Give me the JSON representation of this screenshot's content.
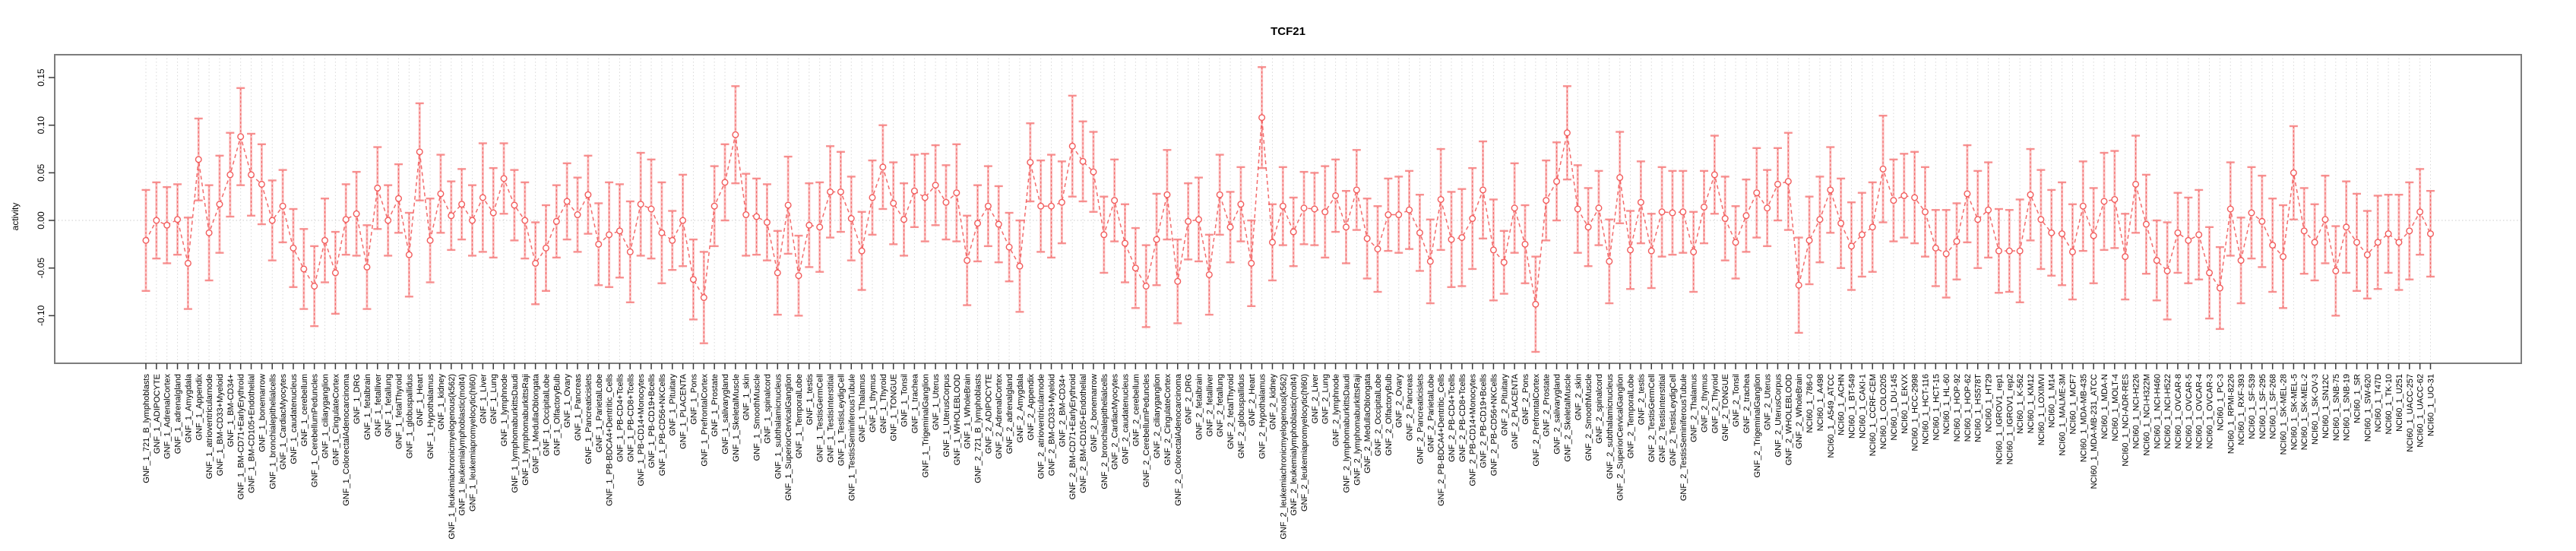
{
  "title": "TCF21",
  "ylabel": "activity",
  "colors": {
    "point": "#f25c5c",
    "line": "#f25c5c",
    "bar": "#f9a0a0",
    "cap": "#f78585",
    "grid": "#d9d9d9",
    "zero_line": "#cccccc",
    "box": "#7d7d7d",
    "tick": "#3a3a3a",
    "text": "#000000"
  },
  "chart_data": {
    "type": "scatter",
    "title": "TCF21",
    "xlabel": "",
    "ylabel": "activity",
    "ylim": [
      -0.15,
      0.174
    ],
    "grid": "dotted vertical line per category; dotted horizontal line at y=0",
    "legend": "none",
    "style": "open circles with symmetric error bars, connected by dashed line",
    "yticks": [
      {
        "label": "0.15",
        "v": 0.15
      },
      {
        "label": "0.10",
        "v": 0.1
      },
      {
        "label": "0.05",
        "v": 0.05
      },
      {
        "label": "0.00",
        "v": 0.0
      },
      {
        "label": "-0.05",
        "v": -0.05
      },
      {
        "label": "-0.10",
        "v": -0.1
      }
    ],
    "categories": [
      "GNF_1_721_B_lymphoblasts",
      "GNF_1_ADIPOCYTE",
      "GNF_1_AdrenalCortex",
      "GNF_1_adrenalgland",
      "GNF_1_Amygdala",
      "GNF_1_Appendix",
      "GNF_1_atrioventricularnode",
      "GNF_1_BM-CD33+Myeloid",
      "GNF_1_BM-CD34+",
      "GNF_1_BM-CD71+EarlyErythroid",
      "GNF_1_BM-CD105+Endothelial",
      "GNF_1_bonemarrow",
      "GNF_1_bronchialepithelialcells",
      "GNF_1_CardiacMyocytes",
      "GNF_1_caudatenucleus",
      "GNF_1_cerebellum",
      "GNF_1_CerebellumPeduncles",
      "GNF_1_ciliaryganglion",
      "GNF_1_CingulateCortex",
      "GNF_1_ColorectalAdenocarcinoma",
      "GNF_1_DRG",
      "GNF_1_fetalbrain",
      "GNF_1_fetalliver",
      "GNF_1_fetallung",
      "GNF_1_fetalThyroid",
      "GNF_1_globuspallidus",
      "GNF_1_Heart",
      "GNF_1_Hypothalamus",
      "GNF_1_kidney",
      "GNF_1_leukemiachronicmyelogenous(k562)",
      "GNF_1_leukemialymphoblastic(molt4)",
      "GNF_1_leukemiapromyelocytic(hl60)",
      "GNF_1_Liver",
      "GNF_1_Lung",
      "GNF_1_lymphnode",
      "GNF_1_lymphomaburkittsDaudi",
      "GNF_1_lymphomaburkittsRaji",
      "GNF_1_MedullaOblongata",
      "GNF_1_OccipitalLobe",
      "GNF_1_OlfactoryBulb",
      "GNF_1_Ovary",
      "GNF_1_Pancreas",
      "GNF_1_Pancreaticislets",
      "GNF_1_ParietalLobe",
      "GNF_1_PB-BDCA4+Dentritic_Cells",
      "GNF_1_PB-CD4+Tcells",
      "GNF_1_PB-CD8+Tcells",
      "GNF_1_PB-CD14+Monocytes",
      "GNF_1_PB-CD19+Bcells",
      "GNF_1_PB-CD56+NKCells",
      "GNF_1_Pituitary",
      "GNF_1_PLACENTA",
      "GNF_1_Pons",
      "GNF_1_PrefrontalCortex",
      "GNF_1_Prostate",
      "GNF_1_salivarygland",
      "GNF_1_SkeletalMuscle",
      "GNF_1_skin",
      "GNF_1_SmoothMuscle",
      "GNF_1_spinalcord",
      "GNF_1_subthalamicnucleus",
      "GNF_1_SuperiorCervicalGanglion",
      "GNF_1_TemporalLobe",
      "GNF_1_testis",
      "GNF_1_TestisGermCell",
      "GNF_1_TestisInterstitial",
      "GNF_1_TestisLeydigCell",
      "GNF_1_TestisSeminiferousTubule",
      "GNF_1_Thalamus",
      "GNF_1_thymus",
      "GNF_1_Thyroid",
      "GNF_1_TONGUE",
      "GNF_1_Tonsil",
      "GNF_1_trachea",
      "GNF_1_TrigeminalGanglion",
      "GNF_1_Uterus",
      "GNF_1_UterusCorpus",
      "GNF_1_WHOLEBLOOD",
      "GNF_1_WholeBrain",
      "GNF_2_721_B_lymphoblasts",
      "GNF_2_ADIPOCYTE",
      "GNF_2_AdrenalCortex",
      "GNF_2_adrenalgland",
      "GNF_2_Amygdala",
      "GNF_2_Appendix",
      "GNF_2_atrioventricularnode",
      "GNF_2_BM-CD33+Myeloid",
      "GNF_2_BM-CD34+",
      "GNF_2_BM-CD71+EarlyErythroid",
      "GNF_2_BM-CD105+Endothelial",
      "GNF_2_bonemarrow",
      "GNF_2_bronchialepithelialcells",
      "GNF_2_CardiacMyocytes",
      "GNF_2_caudatenucleus",
      "GNF_2_cerebellum",
      "GNF_2_CerebellumPeduncles",
      "GNF_2_ciliaryganglion",
      "GNF_2_CingulateCortex",
      "GNF_2_ColorectalAdenocarcinoma",
      "GNF_2_DRG",
      "GNF_2_fetalbrain",
      "GNF_2_fetalliver",
      "GNF_2_fetallung",
      "GNF_2_fetalThyroid",
      "GNF_2_globuspallidus",
      "GNF_2_Heart",
      "GNF_2_Hypothalamus",
      "GNF_2_kidney",
      "GNF_2_leukemiachronicmyelogenous(k562)",
      "GNF_2_leukemialymphoblastic(molt4)",
      "GNF_2_leukemiapromyelocytic(hl60)",
      "GNF_2_Liver",
      "GNF_2_Lung",
      "GNF_2_lymphnode",
      "GNF_2_lymphomaburkittsDaudi",
      "GNF_2_lymphomaburkittsRaji",
      "GNF_2_MedullaOblongata",
      "GNF_2_OccipitalLobe",
      "GNF_2_OlfactoryBulb",
      "GNF_2_Ovary",
      "GNF_2_Pancreas",
      "GNF_2_Pancreaticislets",
      "GNF_2_ParietalLobe",
      "GNF_2_PB-BDCA4+Dentritic_Cells",
      "GNF_2_PB-CD4+Tcells",
      "GNF_2_PB-CD8+Tcells",
      "GNF_2_PB-CD14+Monocytes",
      "GNF_2_PB-CD19+Bcells",
      "GNF_2_PB-CD56+NKCells",
      "GNF_2_Pituitary",
      "GNF_2_PLACENTA",
      "GNF_2_Pons",
      "GNF_2_PrefrontalCortex",
      "GNF_2_Prostate",
      "GNF_2_salivarygland",
      "GNF_2_SkeletalMuscle",
      "GNF_2_skin",
      "GNF_2_SmoothMuscle",
      "GNF_2_spinalcord",
      "GNF_2_subthalamicnucleus",
      "GNF_2_SuperiorCervicalGanglion",
      "GNF_2_TemporalLobe",
      "GNF_2_testis",
      "GNF_2_TestisGermCell",
      "GNF_2_TestisInterstitial",
      "GNF_2_TestisLeydigCell",
      "GNF_2_TestisSeminiferousTubule",
      "GNF_2_Thalamus",
      "GNF_2_thymus",
      "GNF_2_Thyroid",
      "GNF_2_TONGUE",
      "GNF_2_Tonsil",
      "GNF_2_trachea",
      "GNF_2_TrigeminalGanglion",
      "GNF_2_Uterus",
      "GNF_2_UterusCorpus",
      "GNF_2_WHOLEBLOOD",
      "GNF_2_WholeBrain",
      "NCI60_1_786-0",
      "NCI60_1_A498",
      "NCI60_1_A549_ATCC",
      "NCI60_1_ACHN",
      "NCI60_1_BT-549",
      "NCI60_1_CAKI-1",
      "NCI60_1_CCRF-CEM",
      "NCI60_1_COLO205",
      "NCI60_1_DU-145",
      "NCI60_1_EKVX",
      "NCI60_1_HCC-2998",
      "NCI60_1_HCT-116",
      "NCI60_1_HCT-15",
      "NCI60_1_HL-60",
      "NCI60_1_HOP-92",
      "NCI60_1_HOP-62",
      "NCI60_1_HS578T",
      "NCI60_1_HT29",
      "NCI60_1_IGROV1_rep1",
      "NCI60_1_IGROV1_rep2",
      "NCI60_1_K-562",
      "NCI60_1_KM12",
      "NCI60_1_LOXIMVI",
      "NCI60_1_M14",
      "NCI60_1_MALME-3M",
      "NCI60_1_MCF7",
      "NCI60_1_MDA-MB-435",
      "NCI60_1_MDA-MB-231_ATCC",
      "NCI60_1_MDA-N",
      "NCI60_1_MOLT-4",
      "NCI60_1_NCI-ADR-RES",
      "NCI60_1_NCI-H226",
      "NCI60_1_NCI-H322M",
      "NCI60_1_NCI-H460",
      "NCI60_1_NCI-H522",
      "NCI60_1_OVCAR-8",
      "NCI60_1_OVCAR-5",
      "NCI60_1_OVCAR-4",
      "NCI60_1_OVCAR-3",
      "NCI60_1_PC-3",
      "NCI60_1_RPMI-8226",
      "NCI60_1_RXF-393",
      "NCI60_1_SF-539",
      "NCI60_1_SF-295",
      "NCI60_1_SF-268",
      "NCI60_1_SK-MEL-28",
      "NCI60_1_SK-MEL-5",
      "NCI60_1_SK-MEL-2",
      "NCI60_1_SK-OV-3",
      "NCI60_1_SN12C",
      "NCI60_1_SNB-75",
      "NCI60_1_SNB-19",
      "NCI60_1_SR",
      "NCI60_1_SW-620",
      "NCI60_1_T47D",
      "NCI60_1_TK-10",
      "NCI60_1_U251",
      "NCI60_1_UACC-257",
      "NCI60_1_UACC-62",
      "NCI60_1_UO-31"
    ],
    "means": [
      -0.021,
      0.0,
      -0.005,
      0.001,
      -0.045,
      0.064,
      -0.013,
      0.017,
      0.048,
      0.088,
      0.048,
      0.038,
      0.0,
      0.015,
      -0.029,
      -0.051,
      -0.069,
      -0.021,
      -0.055,
      0.001,
      0.007,
      -0.049,
      0.034,
      0.0,
      0.023,
      -0.036,
      0.072,
      -0.021,
      0.028,
      0.005,
      0.017,
      0.0,
      0.024,
      0.008,
      0.044,
      0.016,
      0.0,
      -0.045,
      -0.029,
      -0.001,
      0.02,
      0.006,
      0.027,
      -0.025,
      -0.015,
      -0.011,
      -0.033,
      0.017,
      0.012,
      -0.013,
      -0.021,
      0.0,
      -0.062,
      -0.081,
      0.015,
      0.04,
      0.09,
      0.006,
      0.004,
      -0.002,
      -0.055,
      0.016,
      -0.058,
      -0.005,
      -0.007,
      0.03,
      0.03,
      0.002,
      -0.032,
      0.024,
      0.056,
      0.018,
      0.001,
      0.031,
      0.024,
      0.037,
      0.019,
      0.029,
      -0.042,
      -0.003,
      0.015,
      -0.004,
      -0.028,
      -0.048,
      0.061,
      0.015,
      0.015,
      0.019,
      0.078,
      0.062,
      0.051,
      -0.015,
      0.021,
      -0.024,
      -0.05,
      -0.069,
      -0.02,
      0.027,
      -0.064,
      -0.001,
      0.001,
      -0.057,
      0.027,
      -0.007,
      0.017,
      -0.045,
      0.108,
      -0.023,
      0.015,
      -0.012,
      0.013,
      0.012,
      0.009,
      0.026,
      -0.007,
      0.032,
      -0.019,
      -0.03,
      0.006,
      0.006,
      0.011,
      -0.013,
      -0.043,
      0.022,
      -0.02,
      -0.018,
      0.002,
      0.032,
      -0.031,
      -0.044,
      0.013,
      -0.025,
      -0.088,
      0.021,
      0.041,
      0.092,
      0.012,
      -0.007,
      0.013,
      -0.043,
      0.045,
      -0.031,
      0.019,
      -0.032,
      0.009,
      0.008,
      0.009,
      -0.033,
      0.014,
      0.048,
      0.002,
      -0.023,
      0.005,
      0.029,
      0.013,
      0.038,
      0.041,
      -0.068,
      -0.021,
      0.001,
      0.032,
      -0.003,
      -0.027,
      -0.015,
      -0.007,
      0.054,
      0.021,
      0.026,
      0.024,
      0.009,
      -0.029,
      -0.035,
      -0.022,
      0.028,
      0.001,
      0.011,
      -0.032,
      -0.032,
      -0.032,
      0.027,
      0.001,
      -0.013,
      -0.014,
      -0.033,
      0.015,
      -0.016,
      0.02,
      0.022,
      -0.038,
      0.038,
      -0.004,
      -0.042,
      -0.053,
      -0.013,
      -0.021,
      -0.015,
      -0.055,
      -0.071,
      0.012,
      -0.042,
      0.008,
      -0.001,
      -0.026,
      -0.038,
      0.05,
      -0.011,
      -0.023,
      0.001,
      -0.053,
      -0.007,
      -0.023,
      -0.036,
      -0.023,
      -0.014,
      -0.023,
      -0.011,
      0.009,
      -0.014
    ],
    "errors": [
      0.053,
      0.04,
      0.04,
      0.037,
      0.048,
      0.043,
      0.05,
      0.051,
      0.044,
      0.051,
      0.043,
      0.042,
      0.042,
      0.038,
      0.041,
      0.042,
      0.042,
      0.044,
      0.043,
      0.037,
      0.044,
      0.044,
      0.043,
      0.037,
      0.036,
      0.044,
      0.051,
      0.044,
      0.041,
      0.036,
      0.037,
      0.037,
      0.057,
      0.047,
      0.037,
      0.037,
      0.04,
      0.043,
      0.045,
      0.038,
      0.04,
      0.039,
      0.041,
      0.043,
      0.055,
      0.049,
      0.053,
      0.054,
      0.052,
      0.053,
      0.031,
      0.048,
      0.042,
      0.048,
      0.042,
      0.04,
      0.051,
      0.043,
      0.04,
      0.04,
      0.044,
      0.051,
      0.042,
      0.044,
      0.047,
      0.048,
      0.042,
      0.044,
      0.041,
      0.039,
      0.044,
      0.043,
      0.038,
      0.038,
      0.046,
      0.042,
      0.039,
      0.051,
      0.047,
      0.04,
      0.042,
      0.04,
      0.036,
      0.048,
      0.041,
      0.048,
      0.054,
      0.043,
      0.053,
      0.042,
      0.042,
      0.04,
      0.043,
      0.041,
      0.042,
      0.043,
      0.048,
      0.047,
      0.044,
      0.04,
      0.044,
      0.042,
      0.042,
      0.037,
      0.039,
      0.045,
      0.053,
      0.04,
      0.041,
      0.036,
      0.038,
      0.038,
      0.048,
      0.038,
      0.038,
      0.042,
      0.042,
      0.045,
      0.038,
      0.04,
      0.041,
      0.04,
      0.044,
      0.053,
      0.05,
      0.051,
      0.053,
      0.051,
      0.053,
      0.033,
      0.047,
      0.041,
      0.05,
      0.042,
      0.041,
      0.049,
      0.046,
      0.041,
      0.039,
      0.044,
      0.048,
      0.041,
      0.043,
      0.039,
      0.047,
      0.044,
      0.043,
      0.042,
      0.038,
      0.041,
      0.044,
      0.038,
      0.038,
      0.047,
      0.04,
      0.038,
      0.051,
      0.05,
      0.046,
      0.045,
      0.045,
      0.047,
      0.046,
      0.044,
      0.047,
      0.056,
      0.043,
      0.044,
      0.048,
      0.047,
      0.04,
      0.046,
      0.04,
      0.051,
      0.051,
      0.05,
      0.044,
      0.043,
      0.054,
      0.048,
      0.052,
      0.045,
      0.054,
      0.05,
      0.047,
      0.05,
      0.051,
      0.051,
      0.045,
      0.051,
      0.052,
      0.042,
      0.051,
      0.042,
      0.045,
      0.047,
      0.048,
      0.043,
      0.049,
      0.045,
      0.048,
      0.048,
      0.049,
      0.054,
      0.049,
      0.045,
      0.04,
      0.046,
      0.047,
      0.048,
      0.051,
      0.046,
      0.049,
      0.041,
      0.05,
      0.051,
      0.045,
      0.045
    ]
  }
}
